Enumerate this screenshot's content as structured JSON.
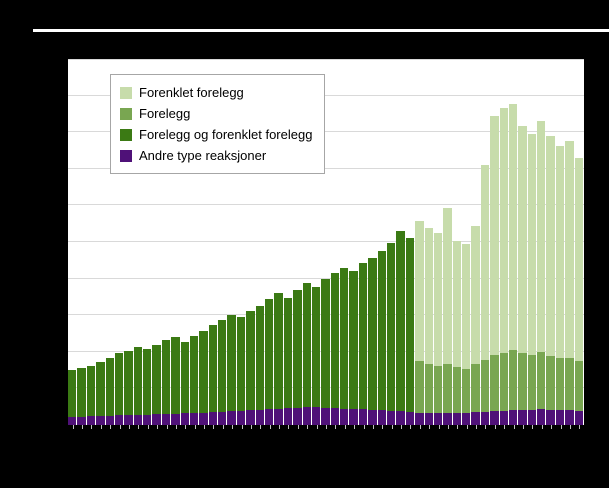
{
  "figure": {
    "background_color": "#000000",
    "plot_background_color": "#ffffff",
    "gridline_color": "#d9d9d9",
    "tick_color": "#c0c0c0"
  },
  "legend": {
    "items": [
      {
        "label": "Forenklet forelegg",
        "color": "#c7dcab"
      },
      {
        "label": "Forelegg",
        "color": "#79a651"
      },
      {
        "label": "Forelegg og forenklet forelegg",
        "color": "#3b7a14"
      },
      {
        "label": "Andre type reaksjoner",
        "color": "#4f1178"
      }
    ]
  },
  "chart_data": {
    "type": "bar",
    "stacked": true,
    "title": "",
    "xlabel": "",
    "ylabel": "",
    "grid": true,
    "legend_position": "top-left-inside",
    "x_tick_labels_visible": false,
    "y_tick_labels_visible": false,
    "ylim": [
      0,
      500000
    ],
    "gridline_interval": 50000,
    "x": [
      1960,
      1961,
      1962,
      1963,
      1964,
      1965,
      1966,
      1967,
      1968,
      1969,
      1970,
      1971,
      1972,
      1973,
      1974,
      1975,
      1976,
      1977,
      1978,
      1979,
      1980,
      1981,
      1982,
      1983,
      1984,
      1985,
      1986,
      1987,
      1988,
      1989,
      1990,
      1991,
      1992,
      1993,
      1994,
      1995,
      1996,
      1997,
      1998,
      1999,
      2000,
      2001,
      2002,
      2003,
      2004,
      2005,
      2006,
      2007,
      2008,
      2009,
      2010,
      2011,
      2012,
      2013,
      2014
    ],
    "series": [
      {
        "name": "Andre type reaksjoner",
        "color": "#4f1178",
        "values": [
          11000,
          11000,
          12000,
          12000,
          12000,
          14000,
          14000,
          14000,
          14000,
          15000,
          15000,
          15000,
          16000,
          16000,
          16000,
          18000,
          18000,
          19000,
          19000,
          20000,
          20000,
          22000,
          22000,
          23000,
          23000,
          25000,
          25000,
          23000,
          23000,
          22000,
          22000,
          22000,
          20000,
          20000,
          19000,
          19000,
          18000,
          16000,
          16000,
          16000,
          16000,
          16000,
          16000,
          18000,
          18000,
          19000,
          19000,
          20000,
          20000,
          20000,
          22000,
          20000,
          20000,
          20000,
          19000
        ]
      },
      {
        "name": "Forelegg og forenklet forelegg",
        "color": "#3b7a14",
        "values": [
          64000,
          67000,
          69000,
          74000,
          80000,
          84000,
          87000,
          93000,
          90000,
          94000,
          101000,
          105000,
          98000,
          106000,
          113000,
          119000,
          125000,
          131000,
          128000,
          136000,
          143000,
          150000,
          158000,
          151000,
          162000,
          169000,
          163000,
          176000,
          184000,
          193000,
          189000,
          199000,
          208000,
          218000,
          229000,
          246000,
          238000,
          0,
          0,
          0,
          0,
          0,
          0,
          0,
          0,
          0,
          0,
          0,
          0,
          0,
          0,
          0,
          0,
          0,
          0
        ]
      },
      {
        "name": "Forelegg",
        "color": "#79a651",
        "values": [
          0,
          0,
          0,
          0,
          0,
          0,
          0,
          0,
          0,
          0,
          0,
          0,
          0,
          0,
          0,
          0,
          0,
          0,
          0,
          0,
          0,
          0,
          0,
          0,
          0,
          0,
          0,
          0,
          0,
          0,
          0,
          0,
          0,
          0,
          0,
          0,
          0,
          71000,
          68000,
          65000,
          68000,
          63000,
          61000,
          65000,
          71000,
          76000,
          79000,
          82000,
          79000,
          76000,
          78000,
          74000,
          71000,
          72000,
          68000
        ]
      },
      {
        "name": "Forenklet forelegg",
        "color": "#c7dcab",
        "values": [
          0,
          0,
          0,
          0,
          0,
          0,
          0,
          0,
          0,
          0,
          0,
          0,
          0,
          0,
          0,
          0,
          0,
          0,
          0,
          0,
          0,
          0,
          0,
          0,
          0,
          0,
          0,
          0,
          0,
          0,
          0,
          0,
          0,
          0,
          0,
          0,
          0,
          192000,
          185000,
          181000,
          212000,
          173000,
          170000,
          189000,
          266000,
          327000,
          335000,
          336000,
          309000,
          301000,
          316000,
          301000,
          290000,
          296000,
          278000
        ]
      }
    ]
  }
}
